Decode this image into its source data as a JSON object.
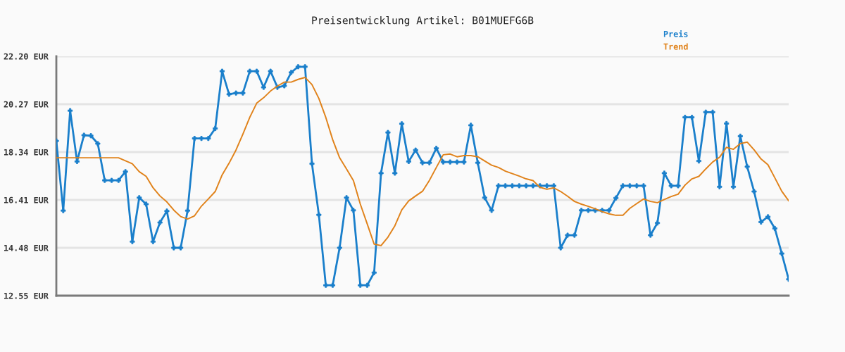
{
  "chart_data": {
    "type": "line",
    "title": "Preisentwicklung Artikel: B01MUEFG6B",
    "categories": [
      null,
      null,
      null,
      null,
      null,
      null,
      null,
      null,
      null,
      null,
      null,
      null,
      null,
      null,
      null,
      null,
      null,
      null,
      null,
      null,
      null,
      null,
      null,
      null,
      null,
      null,
      null,
      null,
      null,
      null,
      null,
      null,
      null,
      null,
      null,
      null,
      null,
      null,
      null,
      null,
      null,
      null,
      null,
      null,
      null,
      null,
      null,
      null,
      null,
      null,
      null,
      null,
      null,
      null,
      null,
      null,
      null,
      null,
      null,
      null,
      null,
      null,
      null,
      null,
      null,
      null,
      null,
      null,
      null,
      null,
      null,
      null,
      null,
      null,
      null,
      null,
      null,
      null,
      null,
      null,
      null,
      null,
      null,
      null,
      null,
      null,
      null,
      null,
      null,
      null,
      null,
      null,
      null,
      null,
      null,
      null,
      null,
      null,
      null,
      null,
      null,
      null,
      null,
      null,
      null,
      null,
      null
    ],
    "series": [
      {
        "name": "Preis",
        "color": "#1a7fcb",
        "marker": "cross",
        "values": [
          18.79,
          15.98,
          20.01,
          17.96,
          19.02,
          19.0,
          18.68,
          17.2,
          17.2,
          17.2,
          17.55,
          14.73,
          16.5,
          16.24,
          14.73,
          15.5,
          15.96,
          14.48,
          14.48,
          15.98,
          18.89,
          18.89,
          18.89,
          19.29,
          21.6,
          20.67,
          20.72,
          20.72,
          21.6,
          21.6,
          20.95,
          21.6,
          20.95,
          21.01,
          21.55,
          21.78,
          21.78,
          17.87,
          15.81,
          12.97,
          12.97,
          14.48,
          16.5,
          15.99,
          12.97,
          12.97,
          13.48,
          17.49,
          19.13,
          17.49,
          19.48,
          17.96,
          18.42,
          17.91,
          17.91,
          18.49,
          17.94,
          17.94,
          17.94,
          17.94,
          19.42,
          17.91,
          16.5,
          15.99,
          16.98,
          16.98,
          16.98,
          16.98,
          16.98,
          16.98,
          16.98,
          16.98,
          16.98,
          14.48,
          14.99,
          14.99,
          15.99,
          15.99,
          15.99,
          15.99,
          15.99,
          16.49,
          16.98,
          16.98,
          16.98,
          16.98,
          14.99,
          15.48,
          17.49,
          16.98,
          16.98,
          19.74,
          19.74,
          17.98,
          19.95,
          19.95,
          16.94,
          19.49,
          16.94,
          18.98,
          17.75,
          16.75,
          15.52,
          15.73,
          15.26,
          14.25,
          13.21
        ]
      },
      {
        "name": "Trend",
        "color": "#e0821a",
        "marker": "none",
        "values": [
          18.11,
          18.11,
          18.11,
          18.11,
          18.11,
          18.11,
          18.11,
          18.11,
          18.11,
          18.11,
          17.99,
          17.87,
          17.55,
          17.36,
          16.9,
          16.57,
          16.33,
          16.0,
          15.74,
          15.64,
          15.77,
          16.16,
          16.45,
          16.75,
          17.42,
          17.89,
          18.42,
          19.06,
          19.74,
          20.31,
          20.53,
          20.8,
          21.0,
          21.16,
          21.16,
          21.27,
          21.35,
          21.06,
          20.5,
          19.74,
          18.84,
          18.11,
          17.66,
          17.19,
          16.24,
          15.44,
          14.63,
          14.57,
          14.91,
          15.37,
          16.01,
          16.37,
          16.57,
          16.76,
          17.2,
          17.72,
          18.23,
          18.26,
          18.15,
          18.2,
          18.2,
          18.15,
          17.98,
          17.81,
          17.72,
          17.57,
          17.47,
          17.37,
          17.26,
          17.19,
          16.92,
          16.84,
          16.9,
          16.75,
          16.56,
          16.35,
          16.24,
          16.15,
          16.05,
          15.94,
          15.85,
          15.79,
          15.79,
          16.07,
          16.26,
          16.45,
          16.35,
          16.3,
          16.43,
          16.55,
          16.64,
          17.01,
          17.26,
          17.36,
          17.66,
          17.94,
          18.13,
          18.53,
          18.45,
          18.68,
          18.74,
          18.43,
          18.06,
          17.83,
          17.3,
          16.76,
          16.38
        ]
      }
    ],
    "ylim": [
      12.55,
      22.2
    ],
    "yticks": [
      {
        "value": 12.55,
        "label": "12.55 EUR"
      },
      {
        "value": 14.48,
        "label": "14.48 EUR"
      },
      {
        "value": 16.41,
        "label": "16.41 EUR"
      },
      {
        "value": 18.34,
        "label": "18.34 EUR"
      },
      {
        "value": 20.27,
        "label": "20.27 EUR"
      },
      {
        "value": 22.2,
        "label": "22.20 EUR"
      }
    ],
    "grid": "y",
    "legend": "top right",
    "tick_labels": "y",
    "line_style": "solid"
  }
}
